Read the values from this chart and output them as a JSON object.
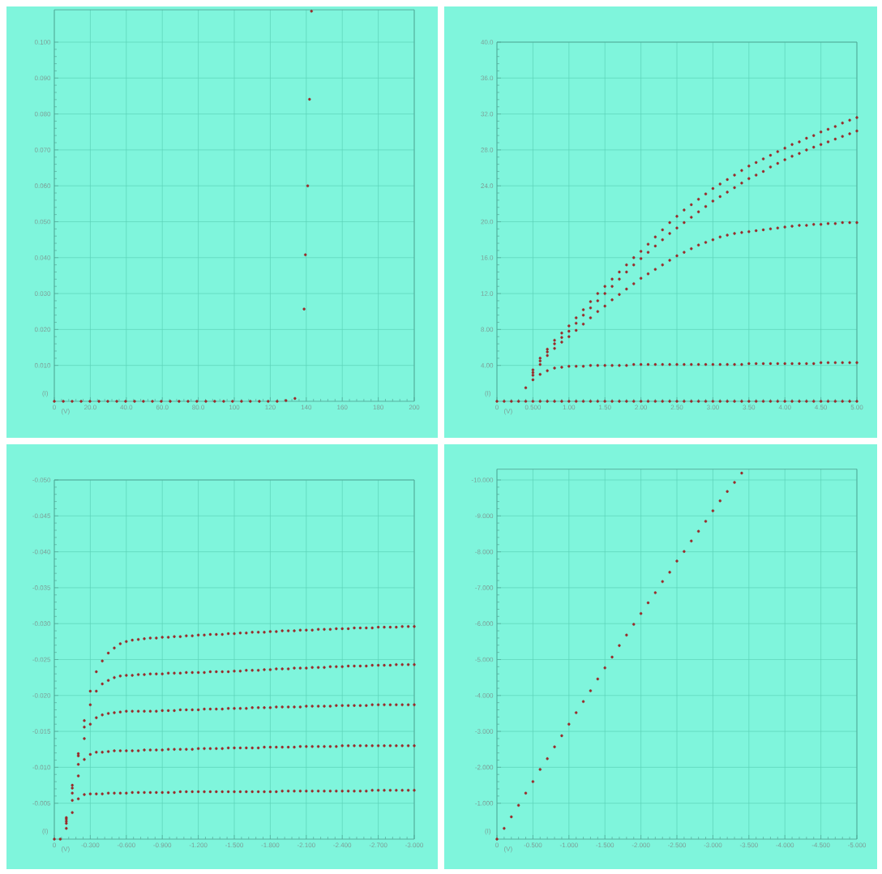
{
  "chart_data": [
    {
      "type": "scatter",
      "xlabel": "(V)",
      "ylabel": "(I)",
      "grid": true,
      "marker": "circle",
      "x": [
        0,
        5.0,
        9.9,
        14.9,
        19.8,
        24.8,
        29.7,
        34.7,
        39.6,
        44.6,
        49.5,
        54.5,
        59.4,
        64.4,
        69.3,
        74.3,
        79.2,
        84.2,
        89.1,
        94.1,
        99.0,
        104.0,
        108.9,
        113.9,
        118.8,
        123.8,
        128.7,
        133.7,
        138.8,
        139.5,
        140.8,
        141.8,
        142.9
      ],
      "series": [
        {
          "color": "#9a2a2a",
          "values": [
            0,
            0,
            0,
            0,
            0,
            0,
            0,
            0,
            0,
            0,
            0,
            0,
            0,
            0,
            0,
            0,
            0,
            0,
            0,
            0,
            0,
            0,
            0,
            0,
            0,
            0,
            0.0002,
            0.0008,
            0.0257,
            0.0408,
            0.06,
            0.0841,
            0.1086
          ]
        }
      ],
      "xlim": [
        0,
        200
      ],
      "ylim": [
        0,
        0.109
      ],
      "xticks": [
        0,
        {
          "value": 20,
          "label": "20.0"
        },
        {
          "value": 40,
          "label": "40.0"
        },
        {
          "value": 60,
          "label": "60.0"
        },
        {
          "value": 80,
          "label": "80.0"
        },
        100,
        120,
        140,
        160,
        180,
        200
      ],
      "yticks": [
        {
          "value": 0.01,
          "label": "0.010"
        },
        {
          "value": 0.02,
          "label": "0.020"
        },
        {
          "value": 0.03,
          "label": "0.030"
        },
        {
          "value": 0.04,
          "label": "0.040"
        },
        {
          "value": 0.05,
          "label": "0.050"
        },
        {
          "value": 0.06,
          "label": "0.060"
        },
        {
          "value": 0.07,
          "label": "0.070"
        },
        {
          "value": 0.08,
          "label": "0.080"
        },
        {
          "value": 0.09,
          "label": "0.090"
        },
        {
          "value": 0.1,
          "label": "0.100"
        }
      ]
    },
    {
      "type": "scatter",
      "xlabel": "(V)",
      "ylabel": "(I)",
      "grid": true,
      "marker": "circle",
      "x": [
        0,
        0.1,
        0.2,
        0.3,
        0.4,
        0.5,
        0.6,
        0.7,
        0.8,
        0.9,
        1.0,
        1.1,
        1.2,
        1.3,
        1.4,
        1.5,
        1.6,
        1.7,
        1.8,
        1.9,
        2.0,
        2.1,
        2.2,
        2.3,
        2.4,
        2.5,
        2.6,
        2.7,
        2.8,
        2.9,
        3.0,
        3.1,
        3.2,
        3.3,
        3.4,
        3.5,
        3.6,
        3.7,
        3.8,
        3.9,
        4.0,
        4.1,
        4.2,
        4.3,
        4.4,
        4.5,
        4.6,
        4.7,
        4.8,
        4.9,
        5.0
      ],
      "series": [
        {
          "color": "#9a2a2a",
          "values": [
            0,
            0,
            0,
            0,
            0,
            0,
            0,
            0,
            0,
            0,
            0,
            0,
            0,
            0,
            0,
            0,
            0,
            0,
            0,
            0,
            0,
            0,
            0,
            0,
            0,
            0,
            0,
            0,
            0,
            0,
            0,
            0,
            0,
            0,
            0,
            0,
            0,
            0,
            0,
            0,
            0,
            0,
            0,
            0,
            0,
            0,
            0,
            0,
            0,
            0,
            0
          ]
        },
        {
          "color": "#9a2a2a",
          "values": [
            null,
            null,
            null,
            null,
            1.5,
            2.4,
            3.0,
            3.4,
            3.7,
            3.8,
            3.9,
            3.9,
            3.9,
            4.0,
            4.0,
            4.0,
            4.0,
            4.0,
            4.0,
            4.1,
            4.1,
            4.1,
            4.1,
            4.1,
            4.1,
            4.1,
            4.1,
            4.1,
            4.1,
            4.1,
            4.1,
            4.1,
            4.1,
            4.1,
            4.1,
            4.2,
            4.2,
            4.2,
            4.2,
            4.2,
            4.2,
            4.2,
            4.2,
            4.2,
            4.2,
            4.3,
            4.3,
            4.3,
            4.3,
            4.3,
            4.3
          ]
        },
        {
          "color": "#9a2a2a",
          "values": [
            null,
            null,
            null,
            null,
            null,
            2.9,
            4.1,
            5.1,
            5.9,
            6.6,
            7.2,
            7.9,
            8.6,
            9.3,
            10.0,
            10.6,
            11.3,
            11.9,
            12.5,
            13.1,
            13.7,
            14.2,
            14.7,
            15.2,
            15.7,
            16.2,
            16.6,
            17.0,
            17.4,
            17.7,
            18.0,
            18.3,
            18.5,
            18.7,
            18.8,
            18.9,
            19.0,
            19.1,
            19.2,
            19.3,
            19.4,
            19.5,
            19.6,
            19.6,
            19.7,
            19.7,
            19.8,
            19.8,
            19.9,
            19.9,
            19.9
          ]
        },
        {
          "color": "#9a2a2a",
          "values": [
            null,
            null,
            null,
            null,
            null,
            3.2,
            4.5,
            5.5,
            6.4,
            7.1,
            7.8,
            8.7,
            9.6,
            10.4,
            11.2,
            12.0,
            12.8,
            13.6,
            14.4,
            15.2,
            15.9,
            16.6,
            17.3,
            18.0,
            18.7,
            19.3,
            19.9,
            20.5,
            21.1,
            21.7,
            22.3,
            22.8,
            23.3,
            23.8,
            24.3,
            24.8,
            25.2,
            25.6,
            26.1,
            26.5,
            26.9,
            27.3,
            27.6,
            28.0,
            28.3,
            28.6,
            28.9,
            29.2,
            29.5,
            29.8,
            30.1
          ]
        },
        {
          "color": "#9a2a2a",
          "values": [
            null,
            null,
            null,
            null,
            null,
            3.5,
            4.8,
            5.8,
            6.8,
            7.6,
            8.4,
            9.3,
            10.2,
            11.1,
            12.0,
            12.8,
            13.6,
            14.4,
            15.2,
            16.0,
            16.7,
            17.5,
            18.3,
            19.1,
            19.9,
            20.6,
            21.3,
            21.9,
            22.5,
            23.1,
            23.7,
            24.2,
            24.7,
            25.2,
            25.7,
            26.2,
            26.6,
            27.0,
            27.4,
            27.8,
            28.2,
            28.6,
            28.9,
            29.3,
            29.6,
            30.0,
            30.3,
            30.6,
            31.0,
            31.3,
            31.6
          ]
        }
      ],
      "xlim": [
        0,
        5
      ],
      "ylim": [
        0,
        40
      ],
      "xticks": [
        0,
        {
          "value": 0.5,
          "label": "0.500"
        },
        {
          "value": 1,
          "label": "1.00"
        },
        {
          "value": 1.5,
          "label": "1.50"
        },
        {
          "value": 2,
          "label": "2.00"
        },
        {
          "value": 2.5,
          "label": "2.50"
        },
        {
          "value": 3,
          "label": "3.00"
        },
        {
          "value": 3.5,
          "label": "3.50"
        },
        {
          "value": 4,
          "label": "4.00"
        },
        {
          "value": 4.5,
          "label": "4.50"
        },
        {
          "value": 5,
          "label": "5.00"
        }
      ],
      "yticks": [
        {
          "value": 4,
          "label": "4.00"
        },
        {
          "value": 8,
          "label": "8.00"
        },
        {
          "value": 12,
          "label": "12.0"
        },
        {
          "value": 16,
          "label": "16.0"
        },
        {
          "value": 20,
          "label": "20.0"
        },
        {
          "value": 24,
          "label": "24.0"
        },
        {
          "value": 28,
          "label": "28.0"
        },
        {
          "value": 32,
          "label": "32.0"
        },
        {
          "value": 36,
          "label": "36.0"
        },
        {
          "value": 40,
          "label": "40.0"
        }
      ]
    },
    {
      "type": "scatter",
      "xlabel": "(V)",
      "ylabel": "(I)",
      "grid": true,
      "marker": "circle",
      "x": [
        0,
        -0.05,
        -0.1,
        -0.15,
        -0.2,
        -0.25,
        -0.3,
        -0.35,
        -0.4,
        -0.45,
        -0.5,
        -0.55,
        -0.6,
        -0.65,
        -0.7,
        -0.75,
        -0.8,
        -0.85,
        -0.9,
        -0.95,
        -1.0,
        -1.05,
        -1.1,
        -1.15,
        -1.2,
        -1.25,
        -1.3,
        -1.35,
        -1.4,
        -1.45,
        -1.5,
        -1.55,
        -1.6,
        -1.65,
        -1.7,
        -1.75,
        -1.8,
        -1.85,
        -1.9,
        -1.95,
        -2.0,
        -2.05,
        -2.1,
        -2.15,
        -2.2,
        -2.25,
        -2.3,
        -2.35,
        -2.4,
        -2.45,
        -2.5,
        -2.55,
        -2.6,
        -2.65,
        -2.7,
        -2.75,
        -2.8,
        -2.85,
        -2.9,
        -2.95,
        -3.0
      ],
      "series": [
        {
          "color": "#9a2a2a",
          "values": [
            0,
            0,
            -0.0015,
            -0.0037,
            -0.0056,
            -0.0062,
            -0.0063,
            -0.0063,
            -0.0063,
            -0.0064,
            -0.0064,
            -0.0064,
            -0.0064,
            -0.0065,
            -0.0065,
            -0.0065,
            -0.0065,
            -0.0065,
            -0.0065,
            -0.0065,
            -0.0065,
            -0.0066,
            -0.0066,
            -0.0066,
            -0.0066,
            -0.0066,
            -0.0066,
            -0.0066,
            -0.0066,
            -0.0066,
            -0.0066,
            -0.0066,
            -0.0066,
            -0.0066,
            -0.0066,
            -0.0066,
            -0.0066,
            -0.0066,
            -0.0067,
            -0.0067,
            -0.0067,
            -0.0067,
            -0.0067,
            -0.0067,
            -0.0067,
            -0.0067,
            -0.0067,
            -0.0067,
            -0.0067,
            -0.0067,
            -0.0067,
            -0.0067,
            -0.0067,
            -0.0068,
            -0.0068,
            -0.0068,
            -0.0068,
            -0.0068,
            -0.0068,
            -0.0068,
            -0.0068
          ]
        },
        {
          "color": "#9a2a2a",
          "values": [
            null,
            null,
            -0.0022,
            -0.0054,
            -0.0088,
            -0.0111,
            -0.0118,
            -0.0121,
            -0.0121,
            -0.0122,
            -0.0123,
            -0.0123,
            -0.0123,
            -0.0123,
            -0.0123,
            -0.0124,
            -0.0124,
            -0.0124,
            -0.0124,
            -0.0125,
            -0.0125,
            -0.0125,
            -0.0125,
            -0.0125,
            -0.0126,
            -0.0126,
            -0.0126,
            -0.0126,
            -0.0126,
            -0.0127,
            -0.0127,
            -0.0127,
            -0.0127,
            -0.0127,
            -0.0127,
            -0.0128,
            -0.0128,
            -0.0128,
            -0.0128,
            -0.0128,
            -0.0128,
            -0.0129,
            -0.0129,
            -0.0129,
            -0.0129,
            -0.0129,
            -0.0129,
            -0.0129,
            -0.013,
            -0.013,
            -0.013,
            -0.013,
            -0.013,
            -0.013,
            -0.013,
            -0.013,
            -0.013,
            -0.013,
            -0.013,
            -0.013,
            -0.013
          ]
        },
        {
          "color": "#9a2a2a",
          "values": [
            null,
            null,
            -0.0025,
            -0.0064,
            -0.0104,
            -0.014,
            -0.016,
            -0.0169,
            -0.0173,
            -0.0175,
            -0.0176,
            -0.0177,
            -0.0178,
            -0.0178,
            -0.0178,
            -0.0178,
            -0.0178,
            -0.0178,
            -0.0179,
            -0.0179,
            -0.0179,
            -0.018,
            -0.018,
            -0.018,
            -0.018,
            -0.0181,
            -0.0181,
            -0.0181,
            -0.0181,
            -0.0182,
            -0.0182,
            -0.0182,
            -0.0182,
            -0.0183,
            -0.0183,
            -0.0183,
            -0.0183,
            -0.0184,
            -0.0184,
            -0.0184,
            -0.0184,
            -0.0184,
            -0.0185,
            -0.0185,
            -0.0185,
            -0.0185,
            -0.0185,
            -0.0186,
            -0.0186,
            -0.0186,
            -0.0186,
            -0.0186,
            -0.0186,
            -0.0187,
            -0.0187,
            -0.0187,
            -0.0187,
            -0.0187,
            -0.0187,
            -0.0187,
            -0.0187
          ]
        },
        {
          "color": "#9a2a2a",
          "values": [
            null,
            null,
            -0.0028,
            -0.0071,
            -0.0116,
            -0.0156,
            -0.0187,
            -0.0206,
            -0.0216,
            -0.0221,
            -0.0225,
            -0.0227,
            -0.0228,
            -0.0228,
            -0.0229,
            -0.0229,
            -0.023,
            -0.023,
            -0.023,
            -0.0231,
            -0.0231,
            -0.0231,
            -0.0232,
            -0.0232,
            -0.0232,
            -0.0232,
            -0.0233,
            -0.0233,
            -0.0233,
            -0.0233,
            -0.0234,
            -0.0234,
            -0.0235,
            -0.0235,
            -0.0235,
            -0.0236,
            -0.0236,
            -0.0237,
            -0.0237,
            -0.0237,
            -0.0238,
            -0.0238,
            -0.0238,
            -0.0239,
            -0.0239,
            -0.0239,
            -0.024,
            -0.024,
            -0.024,
            -0.0241,
            -0.0241,
            -0.0241,
            -0.0241,
            -0.0242,
            -0.0242,
            -0.0242,
            -0.0242,
            -0.0243,
            -0.0243,
            -0.0243,
            -0.0243
          ]
        },
        {
          "color": "#9a2a2a",
          "values": [
            null,
            null,
            -0.003,
            -0.0075,
            -0.0119,
            -0.0165,
            -0.0206,
            -0.0233,
            -0.0248,
            -0.0259,
            -0.0266,
            -0.0272,
            -0.0275,
            -0.0277,
            -0.0278,
            -0.0279,
            -0.028,
            -0.028,
            -0.0281,
            -0.0281,
            -0.0282,
            -0.0282,
            -0.0283,
            -0.0283,
            -0.0284,
            -0.0284,
            -0.0285,
            -0.0285,
            -0.0285,
            -0.0286,
            -0.0286,
            -0.0287,
            -0.0287,
            -0.0288,
            -0.0288,
            -0.0288,
            -0.0289,
            -0.0289,
            -0.029,
            -0.029,
            -0.029,
            -0.0291,
            -0.0291,
            -0.0291,
            -0.0292,
            -0.0292,
            -0.0292,
            -0.0293,
            -0.0293,
            -0.0293,
            -0.0294,
            -0.0294,
            -0.0294,
            -0.0294,
            -0.0295,
            -0.0295,
            -0.0295,
            -0.0295,
            -0.0296,
            -0.0296,
            -0.0296
          ]
        }
      ],
      "xlim": [
        0,
        -3
      ],
      "ylim": [
        0,
        -0.05
      ],
      "xticks": [
        0,
        {
          "value": -0.3,
          "label": "-0.300"
        },
        {
          "value": -0.6,
          "label": "-0.600"
        },
        {
          "value": -0.9,
          "label": "-0.900"
        },
        {
          "value": -1.2,
          "label": "-1.200"
        },
        {
          "value": -1.5,
          "label": "-1.500"
        },
        {
          "value": -1.8,
          "label": "-1.800"
        },
        {
          "value": -2.1,
          "label": "-2.100"
        },
        {
          "value": -2.4,
          "label": "-2.400"
        },
        {
          "value": -2.7,
          "label": "-2.700"
        },
        {
          "value": -3,
          "label": "-3.000"
        }
      ],
      "yticks": [
        {
          "value": -0.005,
          "label": "-0.005"
        },
        {
          "value": -0.01,
          "label": "-0.010"
        },
        {
          "value": -0.015,
          "label": "-0.015"
        },
        {
          "value": -0.02,
          "label": "-0.020"
        },
        {
          "value": -0.025,
          "label": "-0.025"
        },
        {
          "value": -0.03,
          "label": "-0.030"
        },
        {
          "value": -0.035,
          "label": "-0.035"
        },
        {
          "value": -0.04,
          "label": "-0.040"
        },
        {
          "value": -0.045,
          "label": "-0.045"
        },
        {
          "value": -0.05,
          "label": "-0.050"
        }
      ]
    },
    {
      "type": "scatter",
      "xlabel": "(V)",
      "ylabel": "(I)",
      "grid": true,
      "marker": "circle",
      "x": [
        0,
        -0.1,
        -0.2,
        -0.3,
        -0.4,
        -0.5,
        -0.6,
        -0.7,
        -0.8,
        -0.9,
        -1.0,
        -1.1,
        -1.2,
        -1.3,
        -1.4,
        -1.5,
        -1.6,
        -1.7,
        -1.8,
        -1.9,
        -2.0,
        -2.1,
        -2.2,
        -2.3,
        -2.4,
        -2.5,
        -2.6,
        -2.7,
        -2.8,
        -2.9,
        -3.0,
        -3.1,
        -3.2,
        -3.3,
        -3.4
      ],
      "series": [
        {
          "color": "#9a2a2a",
          "values": [
            0,
            -0.3,
            -0.62,
            -0.94,
            -1.28,
            -1.6,
            -1.94,
            -2.24,
            -2.57,
            -2.88,
            -3.2,
            -3.52,
            -3.83,
            -4.13,
            -4.46,
            -4.77,
            -5.07,
            -5.39,
            -5.68,
            -5.98,
            -6.28,
            -6.58,
            -6.86,
            -7.17,
            -7.43,
            -7.74,
            -8.01,
            -8.3,
            -8.57,
            -8.85,
            -9.14,
            -9.42,
            -9.68,
            -9.93,
            -10.19
          ]
        }
      ],
      "xlim": [
        0,
        -5
      ],
      "ylim": [
        0,
        -10.3
      ],
      "xticks": [
        0,
        {
          "value": -0.5,
          "label": "-0.500"
        },
        {
          "value": -1,
          "label": "-1.000"
        },
        {
          "value": -1.5,
          "label": "-1.500"
        },
        {
          "value": -2,
          "label": "-2.000"
        },
        {
          "value": -2.5,
          "label": "-2.500"
        },
        {
          "value": -3,
          "label": "-3.000"
        },
        {
          "value": -3.5,
          "label": "-3.500"
        },
        {
          "value": -4,
          "label": "-4.000"
        },
        {
          "value": -4.5,
          "label": "-4.500"
        },
        {
          "value": -5,
          "label": "-5.000"
        }
      ],
      "yticks": [
        {
          "value": -1,
          "label": "-1.000"
        },
        {
          "value": -2,
          "label": "-2.000"
        },
        {
          "value": -3,
          "label": "-3.000"
        },
        {
          "value": -4,
          "label": "-4.000"
        },
        {
          "value": -5,
          "label": "-5.000"
        },
        {
          "value": -6,
          "label": "-6.000"
        },
        {
          "value": -7,
          "label": "-7.000"
        },
        {
          "value": -8,
          "label": "-8.000"
        },
        {
          "value": -9,
          "label": "-9.000"
        },
        {
          "value": -10,
          "label": "-10.000"
        }
      ]
    }
  ]
}
